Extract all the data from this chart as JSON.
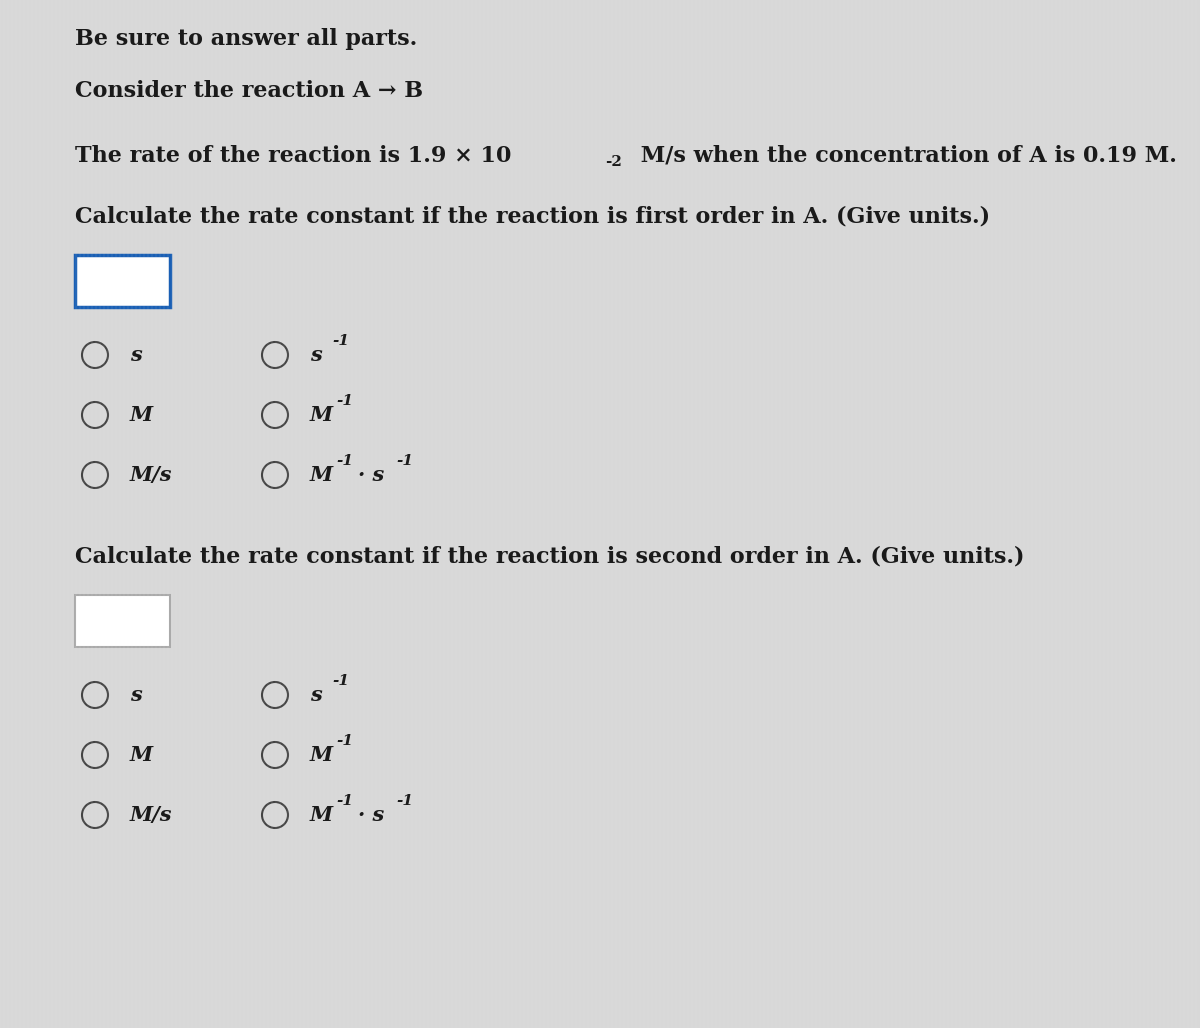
{
  "background_color": "#d8d8d8",
  "content_bg": "#e8e8e8",
  "text_color": "#1a1a1a",
  "box_border_color_q1": "#1a5fb4",
  "box_border_color_q2": "#aaaaaa",
  "line1": "Be sure to answer all parts.",
  "line2": "Consider the reaction A → B",
  "line3_pre": "The rate of the reaction is 1.9 × 10",
  "line3_exp": "-2",
  "line3_post": " M/s when the concentration of A is 0.19 M.",
  "q1_label": "Calculate the rate constant if the reaction is first order in A. (Give units.)",
  "q2_label": "Calculate the rate constant if the reaction is second order in A. (Give units.)",
  "col1_labels": [
    "s",
    "M",
    "M/s"
  ],
  "col2_base": [
    "s",
    "M",
    "M"
  ],
  "col2_sup": [
    "-1",
    "-1",
    "-1"
  ],
  "col2_extra": [
    "",
    "",
    "· s"
  ],
  "col2_extra_sup": [
    "",
    "",
    "-1"
  ]
}
